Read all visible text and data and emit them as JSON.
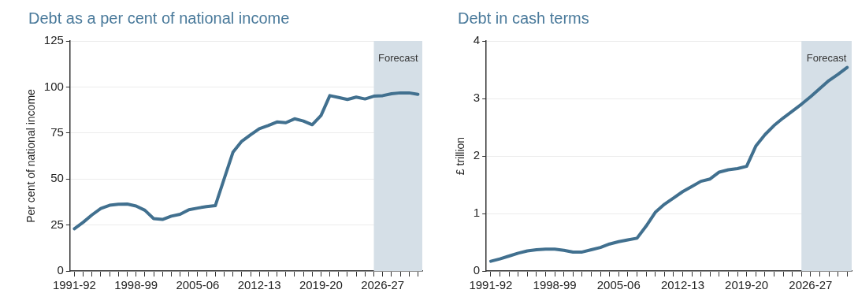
{
  "chart_data": [
    {
      "type": "line",
      "title": "Debt as a per cent of national income",
      "ylabel": "Per cent of national income",
      "categories": [
        "1991-92",
        null,
        null,
        null,
        null,
        null,
        null,
        "1998-99",
        null,
        null,
        null,
        null,
        null,
        null,
        "2005-06",
        null,
        null,
        null,
        null,
        null,
        null,
        "2012-13",
        null,
        null,
        null,
        null,
        null,
        null,
        "2019-20",
        null,
        null,
        null,
        null,
        null,
        null,
        "2026-27",
        null,
        null,
        null,
        null
      ],
      "series": [
        {
          "color": "#41708f",
          "values": [
            23,
            26.5,
            30.5,
            34,
            35.7,
            36.3,
            36.4,
            35.3,
            33,
            28.5,
            28,
            29.8,
            30.8,
            33.3,
            34.2,
            35,
            35.5,
            50,
            64.5,
            70.5,
            74,
            77.3,
            79,
            81,
            80.6,
            82.7,
            81.5,
            79.5,
            84.5,
            95.3,
            94.3,
            93.2,
            94.5,
            93.5,
            95,
            95.3,
            96.3,
            96.8,
            96.8,
            96
          ]
        }
      ],
      "ylim": [
        0,
        125
      ],
      "yticks": [
        0,
        25,
        50,
        75,
        100,
        125
      ],
      "grid": "y",
      "annotations": [
        "Forecast"
      ]
    },
    {
      "type": "line",
      "title": "Debt in cash terms",
      "ylabel": "£ trillion",
      "categories": [
        "1991-92",
        null,
        null,
        null,
        null,
        null,
        null,
        "1998-99",
        null,
        null,
        null,
        null,
        null,
        null,
        "2005-06",
        null,
        null,
        null,
        null,
        null,
        null,
        "2012-13",
        null,
        null,
        null,
        null,
        null,
        null,
        "2019-20",
        null,
        null,
        null,
        null,
        null,
        null,
        "2026-27",
        null,
        null,
        null,
        null
      ],
      "series": [
        {
          "color": "#41708f",
          "values": [
            0.17,
            0.21,
            0.26,
            0.31,
            0.35,
            0.37,
            0.38,
            0.38,
            0.36,
            0.33,
            0.33,
            0.37,
            0.41,
            0.47,
            0.51,
            0.54,
            0.57,
            0.78,
            1.02,
            1.16,
            1.27,
            1.38,
            1.47,
            1.56,
            1.6,
            1.72,
            1.76,
            1.78,
            1.82,
            2.17,
            2.37,
            2.53,
            2.66,
            2.78,
            2.9,
            3.03,
            3.17,
            3.31,
            3.42,
            3.54
          ]
        }
      ],
      "ylim": [
        0,
        4
      ],
      "yticks": [
        0,
        1,
        2,
        3,
        4
      ],
      "grid": "y",
      "annotations": [
        "Forecast"
      ]
    }
  ]
}
